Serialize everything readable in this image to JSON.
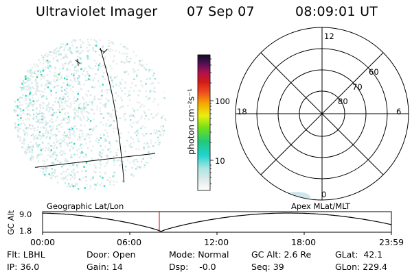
{
  "header": {
    "instrument": "Ultraviolet Imager",
    "date": "07 Sep 07",
    "time": "08:09:01 UT"
  },
  "colorbar": {
    "unit_label": "photon cm⁻²s⁻¹",
    "ticks": [
      "100",
      "10"
    ]
  },
  "polar": {
    "mlt_labels": {
      "top": "12",
      "left": "18",
      "right": "6",
      "bottom": "0"
    },
    "lat_labels": [
      "60",
      "70",
      "80"
    ]
  },
  "timeline": {
    "left_label": "Geographic Lat/Lon",
    "right_label": "Apex MLat/MLT",
    "y_label": "GC Alt",
    "y_ticks": [
      "9.0",
      "1.8"
    ],
    "x_ticks": [
      "00:00",
      "06:00",
      "12:00",
      "18:00",
      "23:59"
    ]
  },
  "footer": {
    "row1": [
      {
        "label": "Flt:",
        "value": "LBHL"
      },
      {
        "label": "Door:",
        "value": "Open"
      },
      {
        "label": "Mode:",
        "value": "Normal"
      },
      {
        "label": "GC Alt:",
        "value": "2.6 Re"
      },
      {
        "label": "GLat:",
        "value": "42.1"
      }
    ],
    "row2": [
      {
        "label": "IP:",
        "value": "36.0"
      },
      {
        "label": "Gain:",
        "value": "14"
      },
      {
        "label": "Dsp:",
        "value": "-0.0"
      },
      {
        "label": "Seq:",
        "value": "39"
      },
      {
        "label": "GLon:",
        "value": "229.4"
      }
    ]
  }
}
